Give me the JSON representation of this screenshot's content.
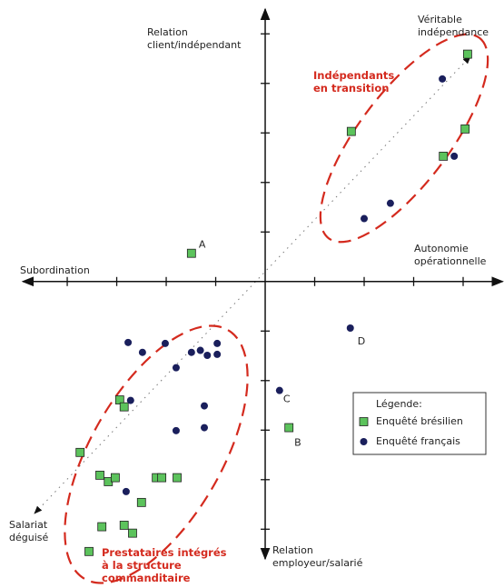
{
  "chart_data": {
    "type": "scatter",
    "ylabel": [
      "Relation",
      "client/indépendant"
    ],
    "ylabel_bottom": [
      "Relation",
      "employeur/salarié"
    ],
    "xlabel": [
      "Autonomie",
      "opérationnelle"
    ],
    "xlabel_left": "Subordination",
    "corner_top_right": [
      "Véritable",
      "indépendance"
    ],
    "corner_bottom_left": [
      "Salariat",
      "déguisé"
    ],
    "annotations": [
      [
        "Indépendants",
        "en transition"
      ],
      [
        "Prestataires intégrés",
        "à la structure",
        "commanditaire"
      ]
    ],
    "legend_title": "Légende:",
    "xlim": [
      -4.9,
      4.8
    ],
    "ylim": [
      -5.6,
      5.5
    ],
    "xticks": [
      -4,
      -3,
      -2,
      -1,
      1,
      2,
      3,
      4
    ],
    "yticks": [
      -5,
      -4,
      -3,
      -2,
      -1,
      1,
      2,
      3,
      4,
      5
    ],
    "series": [
      {
        "name": "Enquêté brésilien",
        "color": "#5cc35c",
        "marker": "square",
        "x": [
          4.09,
          1.74,
          4.04,
          3.6,
          -1.49,
          0.48,
          -2.94,
          -2.85,
          -3.74,
          -3.34,
          -3.17,
          -3.03,
          -2.2,
          -2.09,
          -1.78,
          -2.5,
          -3.3,
          -2.85,
          -2.68,
          -3.56
        ],
        "values": [
          4.59,
          3.03,
          3.08,
          2.53,
          0.57,
          -2.95,
          -2.39,
          -2.53,
          -3.45,
          -3.91,
          -4.04,
          -3.96,
          -3.96,
          -3.96,
          -3.96,
          -4.46,
          -4.95,
          -4.92,
          -5.08,
          -5.45
        ],
        "point_labels": [
          null,
          null,
          null,
          null,
          "A",
          "B",
          null,
          null,
          null,
          null,
          null,
          null,
          null,
          null,
          null,
          null,
          null,
          null,
          null,
          null
        ]
      },
      {
        "name": "Enquêté français",
        "color": "#1a1f5c",
        "marker": "circle",
        "x": [
          3.58,
          3.82,
          2.53,
          2.0,
          1.72,
          0.29,
          -2.77,
          -2.48,
          -2.02,
          -1.49,
          -1.31,
          -1.17,
          -0.97,
          -0.97,
          -1.8,
          -2.72,
          -1.23,
          -1.8,
          -1.23,
          -2.81
        ],
        "values": [
          4.09,
          2.53,
          1.58,
          1.27,
          -0.94,
          -2.2,
          -1.23,
          -1.43,
          -1.25,
          -1.43,
          -1.39,
          -1.49,
          -1.47,
          -1.25,
          -1.74,
          -2.4,
          -2.51,
          -3.01,
          -2.95,
          -4.24
        ],
        "point_labels": [
          null,
          null,
          null,
          null,
          "D",
          "C",
          null,
          null,
          null,
          null,
          null,
          null,
          null,
          null,
          null,
          null,
          null,
          null,
          null,
          null
        ]
      }
    ]
  }
}
